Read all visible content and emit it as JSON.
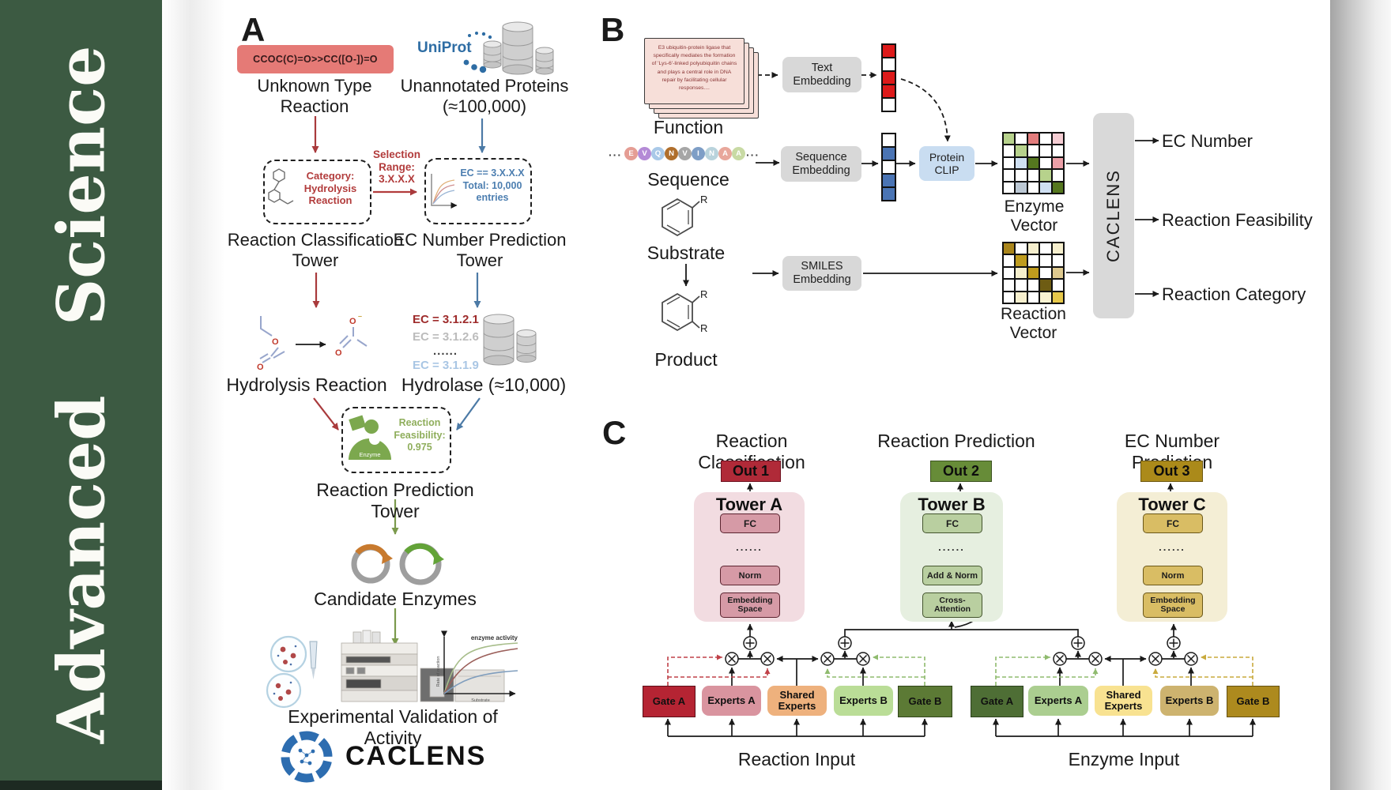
{
  "journal": {
    "name": "Advanced Science"
  },
  "panelA": {
    "label": "A",
    "smiles_box": "CCOC(C)=O>>CC([O-])=O",
    "unknown_reaction_label": "Unknown Type Reaction",
    "uniprot_logo": "UniProt",
    "unannotated_label": "Unannotated Proteins (≈100,000)",
    "category_box": "Category: Hydrolysis Reaction",
    "selection_label": "Selection Range: 3.X.X.X",
    "ec_range_box": "EC == 3.X.X.X Total: 10,000 entries",
    "classification_tower_label": "Reaction Classification Tower",
    "ec_tower_label": "EC Number Prediction Tower",
    "hydrolysis_label": "Hydrolysis Reaction",
    "ec_list": [
      "EC = 3.1.2.1",
      "EC = 3.1.2.6",
      "......",
      "EC = 3.1.1.9"
    ],
    "hydrolase_label": "Hydrolase (≈10,000)",
    "enzyme_icon_label": "Enzyme",
    "feasibility_text": "Reaction Feasibility: 0.975",
    "prediction_tower_label": "Reaction Prediction Tower",
    "candidate_label": "Candidate Enzymes",
    "activity_plot": {
      "title": "enzyme activity",
      "ylabel": "Rate of reaction",
      "xlabel": "Substrate"
    },
    "validation_label": "Experimental Validation of Activity",
    "brand": "CACLENS"
  },
  "panelB": {
    "label": "B",
    "function_card_text": "E3 ubiquitin-protein ligase that specifically mediates the formation of 'Lys-6'-linked polyubiquitin chains and plays a central role in DNA repair by facilitating cellular responses....",
    "function_label": "Function",
    "ellipsis": "···",
    "sequence_label": "Sequence",
    "sequence_residues": [
      {
        "letter": "E",
        "color": "#e59d94"
      },
      {
        "letter": "V",
        "color": "#b48ad6"
      },
      {
        "letter": "Q",
        "color": "#a9c9e8"
      },
      {
        "letter": "N",
        "color": "#b06f2c"
      },
      {
        "letter": "V",
        "color": "#a6a6a6"
      },
      {
        "letter": "I",
        "color": "#7e9ec6"
      },
      {
        "letter": "N",
        "color": "#b9d3dc"
      },
      {
        "letter": "A",
        "color": "#e8a79b"
      },
      {
        "letter": "A",
        "color": "#c8daa4"
      }
    ],
    "substrate_label": "Substrate",
    "product_label": "Product",
    "r_group": "R",
    "text_embedding": "Text Embedding",
    "sequence_embedding": "Sequence Embedding",
    "smiles_embedding": "SMILES Embedding",
    "protein_clip": "Protein CLIP",
    "text_vector": [
      "#dd1a1a",
      "#ffffff",
      "#dd1a1a",
      "#dd1a1a",
      "#ffffff"
    ],
    "sequence_vector": [
      "#ffffff",
      "#4a74b4",
      "#ffffff",
      "#4a74b4",
      "#4a74b4"
    ],
    "enzyme_vector_label": "Enzyme Vector",
    "reaction_vector_label": "Reaction Vector",
    "enzyme_vector_grid": [
      [
        "#b7d28c",
        "#ffffff",
        "#e27c7c",
        "#ffffff",
        "#f5cdd3"
      ],
      [
        "#ffffff",
        "#b7d28c",
        "#ffffff",
        "#ffffff",
        "#ffffff"
      ],
      [
        "#ffffff",
        "#cfe0f2",
        "#55771f",
        "#ffffff",
        "#eca0a8"
      ],
      [
        "#ffffff",
        "#ffffff",
        "#ffffff",
        "#b7d28c",
        "#ffffff"
      ],
      [
        "#ffffff",
        "#bcc8d4",
        "#ffffff",
        "#cfe0f2",
        "#55771f"
      ]
    ],
    "reaction_vector_grid": [
      [
        "#a9851b",
        "#ffffff",
        "#f6efcd",
        "#ffffff",
        "#f6efcd"
      ],
      [
        "#ffffff",
        "#bf9c1e",
        "#ffffff",
        "#ffffff",
        "#ffffff"
      ],
      [
        "#ffffff",
        "#f6efcd",
        "#bf9c1e",
        "#ffffff",
        "#dec98f"
      ],
      [
        "#ffffff",
        "#ffffff",
        "#ffffff",
        "#6e5c13",
        "#ffffff"
      ],
      [
        "#ffffff",
        "#f6efcd",
        "#ffffff",
        "#faf3d2",
        "#e7c84a"
      ]
    ],
    "caclens_bar": "CACLENS",
    "outputs": [
      "EC Number",
      "Reaction Feasibility",
      "Reaction Category"
    ]
  },
  "panelC": {
    "label": "C",
    "columns": [
      {
        "title": "Reaction Classification",
        "out": "Out 1",
        "tower": "Tower A",
        "fc": "FC",
        "dots": "......",
        "mid": "Norm",
        "bottom": "Embedding Space"
      },
      {
        "title": "Reaction Prediction",
        "out": "Out 2",
        "tower": "Tower B",
        "fc": "FC",
        "dots": "......",
        "mid": "Add & Norm",
        "bottom": "Cross-Attention"
      },
      {
        "title": "EC Number Prediction",
        "out": "Out 3",
        "tower": "Tower C",
        "fc": "FC",
        "dots": "......",
        "mid": "Norm",
        "bottom": "Embedding Space"
      }
    ],
    "moe": [
      {
        "input_label": "Reaction Input",
        "gate_a": "Gate A",
        "experts_a": "Experts A",
        "shared": "Shared Experts",
        "experts_b": "Experts B",
        "gate_b": "Gate B"
      },
      {
        "input_label": "Enzyme Input",
        "gate_a": "Gate A",
        "experts_a": "Experts A",
        "shared": "Shared Experts",
        "experts_b": "Experts B",
        "gate_b": "Gate B"
      }
    ]
  }
}
